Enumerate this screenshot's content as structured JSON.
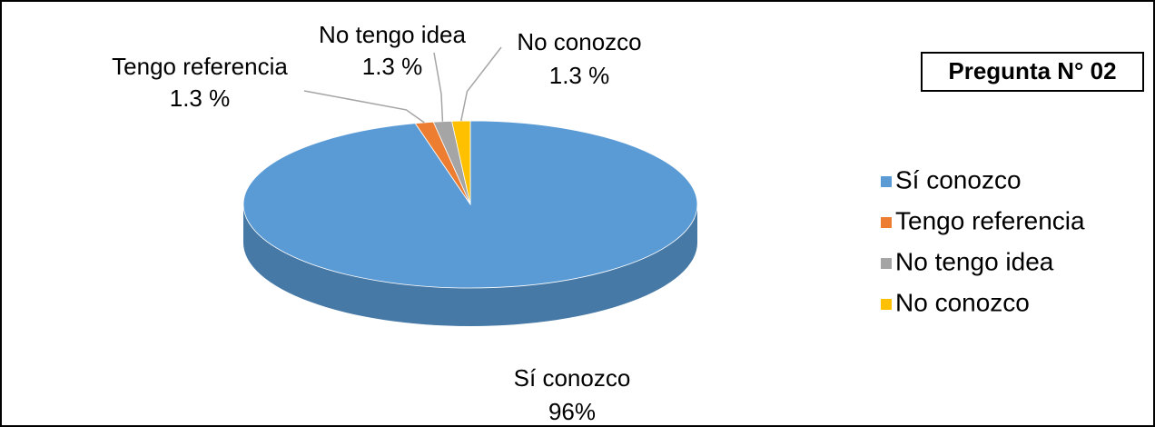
{
  "chart_data": {
    "type": "pie",
    "title": "Pregunta N° 02",
    "categories": [
      "Sí conozco",
      "Tengo referencia",
      "No tengo idea",
      "No conozco"
    ],
    "values": [
      96,
      1.3,
      1.3,
      1.3
    ],
    "value_labels": [
      "96%",
      "1.3 %",
      "1.3 %",
      "1.3 %"
    ],
    "colors": [
      "#5b9bd5",
      "#ed7d31",
      "#a5a5a5",
      "#ffc000"
    ],
    "legend": "right"
  }
}
